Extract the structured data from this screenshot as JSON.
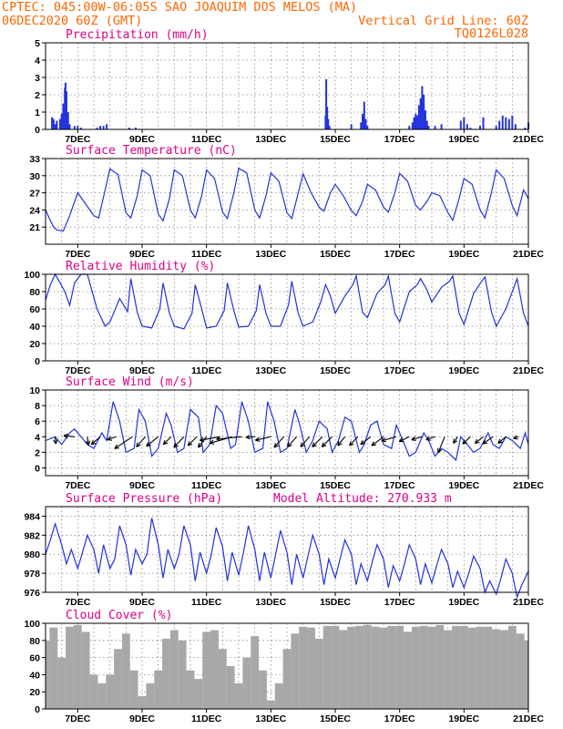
{
  "header": {
    "line1": "CPTEC:  045:00W-06:05S  SAO JOAQUIM DOS MELOS (MA)",
    "line2": "06DEC2020 60Z (GMT)",
    "grid_note": "Vertical Grid Line: 60Z",
    "code": "TQ0126L028"
  },
  "chart_data": [
    {
      "type": "bar",
      "title": "Precipitation (mm/h)",
      "x_tick_labels": [
        "7DEC",
        "9DEC",
        "11DEC",
        "13DEC",
        "15DEC",
        "17DEC",
        "19DEC",
        "21DEC"
      ],
      "x": [
        6.2,
        6.25,
        6.3,
        6.35,
        6.45,
        6.5,
        6.55,
        6.6,
        6.62,
        6.65,
        6.7,
        6.75,
        6.9,
        7.0,
        7.1,
        7.6,
        7.7,
        7.8,
        7.9,
        8.6,
        8.8,
        14.7,
        14.72,
        14.75,
        14.78,
        14.82,
        15.5,
        15.8,
        15.85,
        15.9,
        15.95,
        16.0,
        17.3,
        17.4,
        17.45,
        17.5,
        17.55,
        17.6,
        17.65,
        17.7,
        17.75,
        17.8,
        17.85,
        17.9,
        18.1,
        18.3,
        18.9,
        19.0,
        19.1,
        19.2,
        19.5,
        19.6,
        20.0,
        20.1,
        20.2,
        20.3,
        20.4,
        20.5,
        20.6,
        20.9,
        21.0
      ],
      "values": [
        0.7,
        0.6,
        0.3,
        0.5,
        0.6,
        0.9,
        1.5,
        2.4,
        2.7,
        2.2,
        1.0,
        0.3,
        0.2,
        0.2,
        0.1,
        0.1,
        0.2,
        0.2,
        0.3,
        0.1,
        0.1,
        0.8,
        2.9,
        1.3,
        0.6,
        0.2,
        0.3,
        0.4,
        0.9,
        1.6,
        0.6,
        0.2,
        0.2,
        0.4,
        0.7,
        0.9,
        0.8,
        1.4,
        1.8,
        2.5,
        2.0,
        1.1,
        0.5,
        0.2,
        0.2,
        0.3,
        0.5,
        0.7,
        0.3,
        0.1,
        0.2,
        0.7,
        0.2,
        0.5,
        0.8,
        0.7,
        0.6,
        0.8,
        0.3,
        0.1,
        0.4
      ],
      "xlim": [
        6.0,
        21.0
      ],
      "ylim": [
        0,
        5
      ],
      "y_ticks": [
        0,
        1,
        2,
        3,
        4,
        5
      ]
    },
    {
      "type": "line",
      "title": "Surface Temperature (nC)",
      "x_tick_labels": [
        "7DEC",
        "9DEC",
        "11DEC",
        "13DEC",
        "15DEC",
        "17DEC",
        "19DEC",
        "21DEC"
      ],
      "x": [
        6.0,
        6.12,
        6.25,
        6.35,
        6.55,
        6.75,
        7.0,
        7.25,
        7.5,
        7.65,
        7.85,
        8.0,
        8.25,
        8.5,
        8.65,
        8.85,
        9.0,
        9.25,
        9.5,
        9.65,
        9.85,
        10.0,
        10.25,
        10.5,
        10.65,
        10.85,
        11.0,
        11.25,
        11.5,
        11.65,
        11.85,
        12.0,
        12.25,
        12.5,
        12.65,
        12.85,
        13.0,
        13.25,
        13.5,
        13.65,
        13.85,
        14.0,
        14.25,
        14.5,
        14.65,
        14.85,
        15.0,
        15.25,
        15.5,
        15.65,
        15.85,
        16.0,
        16.25,
        16.5,
        16.65,
        16.85,
        17.0,
        17.25,
        17.5,
        17.65,
        17.85,
        18.0,
        18.25,
        18.5,
        18.65,
        18.85,
        19.0,
        19.25,
        19.5,
        19.65,
        19.85,
        20.0,
        20.25,
        20.5,
        20.65,
        20.85,
        21.0
      ],
      "series": [
        {
          "values": [
            24.0,
            22.5,
            21.0,
            20.5,
            20.3,
            23.0,
            27.0,
            25.0,
            23.0,
            22.6,
            27.5,
            31.2,
            30.2,
            23.5,
            22.6,
            26.5,
            31.0,
            30.0,
            23.3,
            22.1,
            26.0,
            31.0,
            30.0,
            24.0,
            22.6,
            26.5,
            31.0,
            29.5,
            23.6,
            22.5,
            27.0,
            31.3,
            30.5,
            24.0,
            22.6,
            26.5,
            30.5,
            29.0,
            23.5,
            22.5,
            27.0,
            30.3,
            27.0,
            24.5,
            23.8,
            27.0,
            28.5,
            26.5,
            23.9,
            23.0,
            25.5,
            28.5,
            27.5,
            24.5,
            23.6,
            27.0,
            30.4,
            29.0,
            24.8,
            24.0,
            25.5,
            27.0,
            26.5,
            23.5,
            22.2,
            26.0,
            29.5,
            28.5,
            24.0,
            22.6,
            27.0,
            31.0,
            29.5,
            24.8,
            23.0,
            27.5,
            26.0
          ]
        }
      ],
      "xlim": [
        6.0,
        21.0
      ],
      "ylim": [
        18,
        33
      ],
      "y_ticks": [
        21,
        24,
        27,
        30,
        33
      ]
    },
    {
      "type": "line",
      "title": "Relative Humidity (%)",
      "x_tick_labels": [
        "7DEC",
        "9DEC",
        "11DEC",
        "13DEC",
        "15DEC",
        "17DEC",
        "19DEC",
        "21DEC"
      ],
      "x": [
        6.0,
        6.15,
        6.3,
        6.6,
        6.75,
        6.9,
        7.1,
        7.3,
        7.6,
        7.85,
        8.0,
        8.3,
        8.55,
        8.65,
        8.85,
        9.0,
        9.3,
        9.55,
        9.65,
        9.85,
        10.0,
        10.3,
        10.55,
        10.65,
        10.85,
        11.0,
        11.3,
        11.55,
        11.65,
        11.85,
        12.0,
        12.3,
        12.55,
        12.65,
        12.85,
        13.0,
        13.3,
        13.55,
        13.65,
        13.85,
        14.0,
        14.3,
        14.55,
        14.7,
        14.85,
        15.0,
        15.3,
        15.55,
        15.65,
        15.85,
        16.0,
        16.3,
        16.55,
        16.65,
        16.85,
        17.0,
        17.3,
        17.55,
        17.65,
        17.85,
        18.0,
        18.3,
        18.55,
        18.65,
        18.85,
        19.0,
        19.3,
        19.55,
        19.65,
        19.85,
        20.0,
        20.3,
        20.55,
        20.65,
        20.85,
        21.0
      ],
      "series": [
        {
          "values": [
            70.0,
            88.0,
            100.0,
            80.0,
            64.0,
            90.0,
            100.0,
            100.0,
            60.0,
            40.0,
            45.0,
            72.0,
            57.0,
            95.0,
            56.0,
            40.0,
            38.0,
            60.0,
            90.0,
            55.0,
            40.0,
            37.0,
            55.0,
            88.0,
            60.0,
            38.0,
            40.0,
            58.0,
            90.0,
            58.0,
            39.0,
            40.0,
            58.0,
            88.0,
            55.0,
            40.0,
            40.0,
            65.0,
            92.0,
            55.0,
            40.0,
            45.0,
            68.0,
            88.0,
            75.0,
            55.0,
            75.0,
            88.0,
            98.0,
            56.0,
            50.0,
            78.0,
            88.0,
            98.0,
            55.0,
            45.0,
            80.0,
            88.0,
            95.0,
            82.0,
            68.0,
            85.0,
            92.0,
            98.0,
            55.0,
            42.0,
            78.0,
            92.0,
            97.0,
            57.0,
            40.0,
            60.0,
            85.0,
            95.0,
            55.0,
            40.0
          ]
        }
      ],
      "xlim": [
        6.0,
        21.0
      ],
      "ylim": [
        0,
        100
      ],
      "y_ticks": [
        0,
        20,
        40,
        60,
        80,
        100
      ]
    },
    {
      "type": "line",
      "title": "Surface Wind (m/s)",
      "x_tick_labels": [
        "7DEC",
        "9DEC",
        "11DEC",
        "13DEC",
        "15DEC",
        "17DEC",
        "19DEC",
        "21DEC"
      ],
      "x": [
        6.0,
        6.3,
        6.5,
        6.75,
        6.9,
        7.1,
        7.3,
        7.5,
        7.75,
        7.9,
        8.1,
        8.3,
        8.5,
        8.75,
        8.9,
        9.1,
        9.3,
        9.5,
        9.75,
        9.9,
        10.1,
        10.3,
        10.5,
        10.75,
        10.9,
        11.1,
        11.3,
        11.5,
        11.75,
        11.9,
        12.1,
        12.3,
        12.5,
        12.75,
        12.9,
        13.1,
        13.3,
        13.5,
        13.75,
        13.9,
        14.1,
        14.3,
        14.5,
        14.75,
        14.9,
        15.1,
        15.3,
        15.5,
        15.75,
        15.9,
        16.1,
        16.3,
        16.5,
        16.75,
        16.9,
        17.1,
        17.3,
        17.5,
        17.75,
        17.9,
        18.1,
        18.3,
        18.5,
        18.75,
        18.9,
        19.1,
        19.3,
        19.5,
        19.75,
        19.9,
        20.1,
        20.3,
        20.5,
        20.75,
        20.9,
        21.0
      ],
      "series": [
        {
          "values": [
            3.5,
            4.0,
            3.0,
            4.5,
            5.0,
            4.0,
            3.0,
            2.5,
            4.5,
            3.5,
            8.5,
            6.0,
            2.0,
            2.5,
            7.5,
            6.0,
            1.5,
            2.5,
            7.0,
            5.5,
            2.0,
            2.5,
            7.5,
            6.5,
            2.0,
            3.0,
            8.0,
            7.0,
            2.5,
            3.0,
            8.5,
            6.0,
            2.0,
            2.5,
            8.5,
            6.0,
            2.0,
            2.5,
            7.5,
            5.5,
            2.0,
            3.5,
            6.0,
            5.0,
            2.0,
            3.5,
            6.5,
            6.0,
            2.0,
            3.0,
            5.5,
            6.0,
            3.0,
            2.5,
            5.5,
            3.5,
            1.5,
            2.0,
            4.5,
            3.5,
            1.5,
            2.5,
            2.0,
            1.0,
            4.0,
            3.0,
            2.0,
            2.5,
            4.5,
            3.0,
            2.5,
            4.0,
            3.5,
            2.5,
            4.5,
            3.0
          ]
        }
      ],
      "wind_arrows": {
        "x": [
          6.3,
          6.9,
          7.3,
          7.7,
          8.2,
          8.7,
          9.1,
          9.5,
          9.9,
          10.3,
          10.7,
          11.0,
          11.4,
          11.8,
          12.1,
          12.5,
          13.0,
          13.4,
          13.8,
          14.2,
          14.6,
          14.9,
          15.3,
          15.7,
          16.1,
          16.5,
          16.9,
          17.3,
          17.7,
          18.1,
          18.4,
          18.8,
          19.2,
          19.6,
          19.9,
          20.3,
          20.7
        ],
        "u": [
          0.1,
          -1.8,
          0.2,
          -1.5,
          -1.5,
          -3.0,
          -1.5,
          -2.0,
          -1.3,
          -1.7,
          -1.5,
          -1.4,
          -3.3,
          -3.8,
          -4.3,
          -1.5,
          -2.6,
          -1.6,
          -1.5,
          -1.5,
          -1.7,
          -1.7,
          -1.2,
          -1.4,
          -1.7,
          -2.0,
          -2.5,
          -1.7,
          -1.8,
          -1.5,
          -1.1,
          -0.7,
          -1.3,
          -1.4,
          -1.7,
          -1.3,
          -0.9
        ],
        "v": [
          -1.2,
          0.2,
          -1.4,
          -1.3,
          -0.5,
          -2.0,
          -1.7,
          -1.6,
          -1.3,
          -1.8,
          -1.5,
          -1.8,
          -0.6,
          -1.1,
          -0.4,
          -0.1,
          -0.6,
          -1.8,
          -1.7,
          -1.7,
          -1.7,
          -1.7,
          -1.5,
          -1.5,
          -1.3,
          -1.5,
          -0.7,
          -0.8,
          -0.5,
          -0.5,
          -2.7,
          -1.1,
          -1.2,
          -1.1,
          -1.2,
          -1.1,
          -0.3
        ]
      },
      "xlim": [
        6.0,
        21.0
      ],
      "ylim": [
        -1,
        10
      ],
      "y_ticks": [
        0,
        2,
        4,
        6,
        8,
        10
      ]
    },
    {
      "type": "line",
      "title": "Surface Pressure (hPa)",
      "annotation": "Model Altitude: 270.933  m",
      "x_tick_labels": [
        "7DEC",
        "9DEC",
        "11DEC",
        "13DEC",
        "15DEC",
        "17DEC",
        "19DEC",
        "21DEC"
      ],
      "x": [
        6.0,
        6.15,
        6.3,
        6.5,
        6.65,
        6.8,
        7.0,
        7.15,
        7.3,
        7.5,
        7.65,
        7.8,
        8.0,
        8.15,
        8.3,
        8.5,
        8.65,
        8.8,
        9.0,
        9.15,
        9.3,
        9.5,
        9.65,
        9.8,
        10.0,
        10.15,
        10.3,
        10.5,
        10.65,
        10.8,
        11.0,
        11.15,
        11.3,
        11.5,
        11.65,
        11.8,
        12.0,
        12.15,
        12.3,
        12.5,
        12.65,
        12.8,
        13.0,
        13.15,
        13.3,
        13.5,
        13.65,
        13.8,
        14.0,
        14.15,
        14.3,
        14.5,
        14.65,
        14.8,
        15.0,
        15.15,
        15.3,
        15.5,
        15.65,
        15.8,
        16.0,
        16.15,
        16.3,
        16.5,
        16.65,
        16.8,
        17.0,
        17.15,
        17.3,
        17.5,
        17.65,
        17.8,
        18.0,
        18.15,
        18.3,
        18.5,
        18.65,
        18.8,
        19.0,
        19.15,
        19.3,
        19.5,
        19.65,
        19.8,
        20.0,
        20.15,
        20.3,
        20.5,
        20.65,
        20.8,
        21.0
      ],
      "series": [
        {
          "values": [
            980.0,
            981.5,
            983.2,
            981.0,
            979.0,
            980.5,
            978.5,
            980.2,
            982.0,
            980.5,
            978.0,
            981.0,
            978.5,
            979.5,
            983.0,
            981.0,
            977.8,
            980.5,
            979.0,
            980.0,
            983.8,
            981.0,
            977.5,
            980.5,
            978.5,
            980.0,
            983.0,
            981.0,
            977.2,
            980.2,
            978.0,
            980.0,
            982.8,
            980.8,
            977.2,
            980.2,
            977.8,
            980.2,
            983.0,
            980.5,
            977.2,
            980.2,
            977.5,
            980.0,
            982.5,
            980.2,
            976.8,
            980.0,
            977.5,
            979.8,
            982.0,
            980.0,
            976.8,
            979.5,
            977.5,
            979.5,
            981.5,
            980.0,
            976.8,
            979.0,
            977.2,
            979.2,
            981.0,
            979.5,
            976.5,
            978.8,
            977.2,
            979.0,
            981.0,
            979.5,
            976.8,
            979.0,
            977.0,
            978.8,
            980.5,
            979.0,
            976.5,
            978.2,
            976.5,
            978.0,
            979.8,
            978.5,
            976.0,
            977.2,
            975.8,
            977.5,
            979.5,
            978.0,
            975.5,
            976.8,
            978.2
          ]
        }
      ],
      "xlim": [
        6.0,
        21.0
      ],
      "ylim": [
        976,
        985
      ],
      "y_ticks": [
        976,
        978,
        980,
        982,
        984
      ]
    },
    {
      "type": "bar",
      "title": "Cloud Cover (%)",
      "x_tick_labels": [
        "7DEC",
        "9DEC",
        "11DEC",
        "13DEC",
        "15DEC",
        "17DEC",
        "19DEC",
        "21DEC"
      ],
      "x": [
        6.0,
        6.25,
        6.5,
        6.75,
        7.0,
        7.25,
        7.5,
        7.75,
        8.0,
        8.25,
        8.5,
        8.75,
        9.0,
        9.25,
        9.5,
        9.75,
        10.0,
        10.25,
        10.5,
        10.75,
        11.0,
        11.25,
        11.5,
        11.75,
        12.0,
        12.25,
        12.5,
        12.75,
        13.0,
        13.25,
        13.5,
        13.75,
        14.0,
        14.25,
        14.5,
        14.75,
        15.0,
        15.25,
        15.5,
        15.75,
        16.0,
        16.25,
        16.5,
        16.75,
        17.0,
        17.25,
        17.5,
        17.75,
        18.0,
        18.25,
        18.5,
        18.75,
        19.0,
        19.25,
        19.5,
        19.75,
        20.0,
        20.25,
        20.5,
        20.75,
        21.0
      ],
      "values": [
        80,
        95,
        60,
        96,
        98,
        90,
        40,
        30,
        40,
        70,
        88,
        45,
        15,
        30,
        45,
        82,
        92,
        80,
        45,
        35,
        90,
        92,
        70,
        50,
        30,
        60,
        85,
        45,
        10,
        30,
        70,
        88,
        96,
        95,
        82,
        97,
        97,
        92,
        96,
        97,
        98,
        96,
        95,
        97,
        97,
        90,
        96,
        97,
        96,
        98,
        92,
        97,
        97,
        95,
        96,
        96,
        93,
        92,
        97,
        88,
        80
      ],
      "xlim": [
        6.0,
        21.0
      ],
      "ylim": [
        0,
        100
      ],
      "y_ticks": [
        0,
        20,
        40,
        60,
        80,
        100
      ]
    }
  ],
  "colors": {
    "header": "#ff6600",
    "panel_title": "#dd0088",
    "series": "#2233dd",
    "cloud": "#a8a8a8",
    "arrow": "#000000"
  }
}
